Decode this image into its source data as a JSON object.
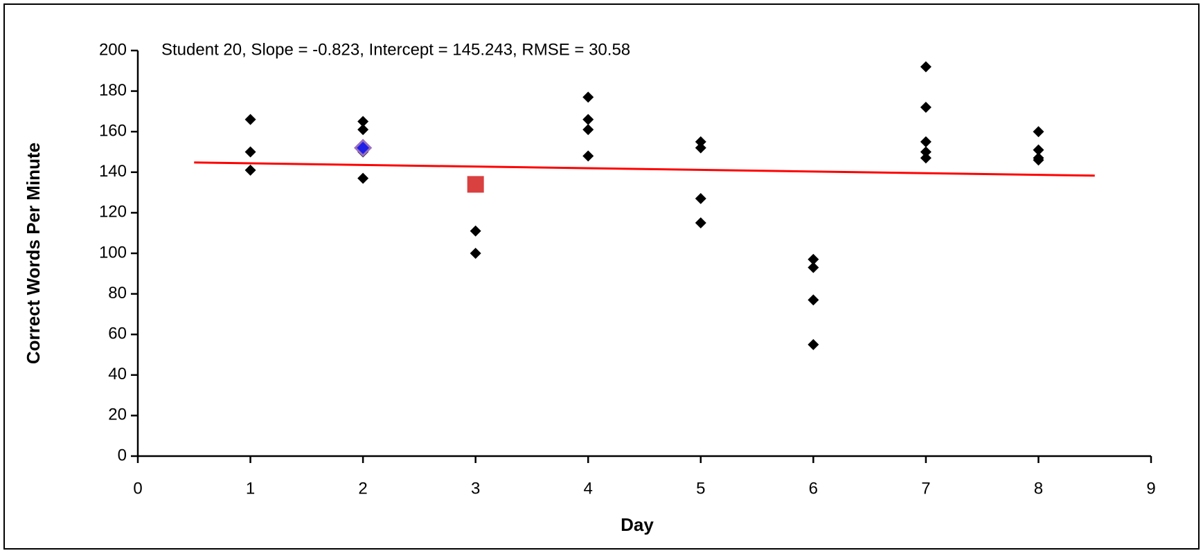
{
  "chart_data": {
    "type": "scatter",
    "annotation": "Student 20, Slope = -0.823, Intercept = 145.243, RMSE = 30.58",
    "x_label": "Day",
    "y_label": "Correct Words Per Minute",
    "xlim": [
      0,
      9
    ],
    "xticks": [
      0,
      1,
      2,
      3,
      4,
      5,
      6,
      7,
      8,
      9
    ],
    "ylim": [
      0,
      200
    ],
    "yticks": [
      0,
      20,
      40,
      60,
      80,
      100,
      120,
      140,
      160,
      180,
      200
    ],
    "grid": false,
    "series": [
      {
        "color": "#000000",
        "marker": "diamond",
        "x": [
          1,
          1,
          1,
          2,
          2,
          2,
          2,
          3,
          3,
          4,
          4,
          4,
          4,
          5,
          5,
          5,
          5,
          6,
          6,
          6,
          6,
          7,
          7,
          7,
          7,
          7,
          8,
          8,
          8,
          8
        ],
        "values": [
          166,
          150,
          141,
          165,
          161,
          150,
          137,
          111,
          100,
          177,
          166,
          161,
          148,
          155,
          152,
          127,
          115,
          97,
          93,
          77,
          55,
          192,
          172,
          155,
          150,
          147,
          160,
          151,
          147,
          146
        ]
      },
      {
        "color": "#1f1fe6",
        "marker": "diamond-outlined",
        "x": [
          2
        ],
        "values": [
          152
        ]
      },
      {
        "color": "#d94040",
        "marker": "square",
        "x": [
          3
        ],
        "values": [
          134
        ]
      },
      {
        "color": "#ff0000",
        "marker": "line",
        "x": [
          0.5,
          8.5
        ],
        "values": [
          144.8,
          138.3
        ]
      }
    ]
  }
}
